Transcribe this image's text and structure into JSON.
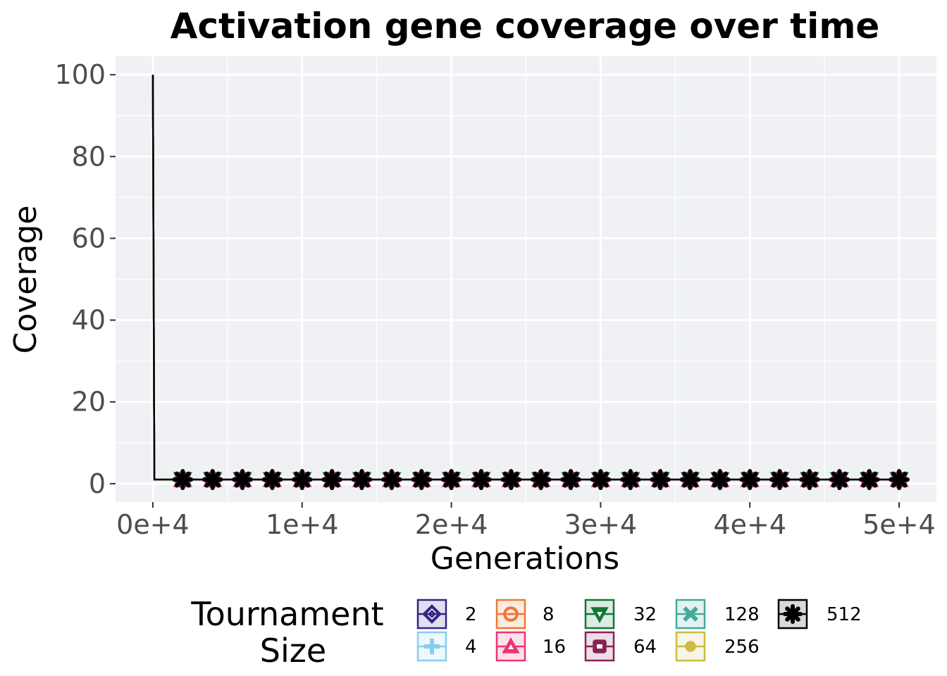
{
  "chart_data": {
    "type": "line",
    "title": "Activation gene coverage over time",
    "xlabel": "Generations",
    "ylabel": "Coverage",
    "xlim": [
      -2500,
      52500
    ],
    "ylim": [
      -4.5,
      104.5
    ],
    "x_ticks": [
      0,
      10000,
      20000,
      30000,
      40000,
      50000
    ],
    "x_tick_labels": [
      "0e+4",
      "1e+4",
      "2e+4",
      "3e+4",
      "4e+4",
      "5e+4"
    ],
    "y_ticks": [
      0,
      20,
      40,
      60,
      80,
      100
    ],
    "y_tick_labels": [
      "0",
      "20",
      "40",
      "60",
      "80",
      "100"
    ],
    "grid": true,
    "legend": {
      "title_lines": [
        "Tournament",
        "Size"
      ],
      "position": "bottom"
    },
    "x": [
      0,
      100,
      2000,
      4000,
      6000,
      8000,
      10000,
      12000,
      14000,
      16000,
      18000,
      20000,
      22000,
      24000,
      26000,
      28000,
      30000,
      32000,
      34000,
      36000,
      38000,
      40000,
      42000,
      44000,
      46000,
      48000,
      50000
    ],
    "series": [
      {
        "name": "2",
        "color": "#332288",
        "shape": "diamond",
        "values": [
          100,
          1,
          1,
          1,
          1,
          1,
          1,
          1,
          1,
          1,
          1,
          1,
          1,
          1,
          1,
          1,
          1,
          1,
          1,
          1,
          1,
          1,
          1,
          1,
          1,
          1,
          1
        ]
      },
      {
        "name": "4",
        "color": "#88CCEE",
        "shape": "plus",
        "values": [
          100,
          1,
          1,
          1,
          1,
          1,
          1,
          1,
          1,
          1,
          1,
          1,
          1,
          1,
          1,
          1,
          1,
          1,
          1,
          1,
          1,
          1,
          1,
          1,
          1,
          1,
          1
        ]
      },
      {
        "name": "8",
        "color": "#EE7733",
        "shape": "circle-minus",
        "values": [
          100,
          1,
          1,
          1,
          1,
          1,
          1,
          1,
          1,
          1,
          1,
          1,
          1,
          1,
          1,
          1,
          1,
          1,
          1,
          1,
          1,
          1,
          1,
          1,
          1,
          1,
          1
        ]
      },
      {
        "name": "16",
        "color": "#EE3377",
        "shape": "triangle",
        "values": [
          100,
          1,
          1,
          1,
          1,
          1,
          1,
          1,
          1,
          1,
          1,
          1,
          1,
          1,
          1,
          1,
          1,
          1,
          1,
          1,
          1,
          1,
          1,
          1,
          1,
          1,
          1
        ]
      },
      {
        "name": "32",
        "color": "#117733",
        "shape": "triangle-down",
        "values": [
          100,
          1,
          1,
          1,
          1,
          1,
          1,
          1,
          1,
          1,
          1,
          1,
          1,
          1,
          1,
          1,
          1,
          1,
          1,
          1,
          1,
          1,
          1,
          1,
          1,
          1,
          1
        ]
      },
      {
        "name": "64",
        "color": "#882255",
        "shape": "square",
        "values": [
          100,
          1,
          1,
          1,
          1,
          1,
          1,
          1,
          1,
          1,
          1,
          1,
          1,
          1,
          1,
          1,
          1,
          1,
          1,
          1,
          1,
          1,
          1,
          1,
          1,
          1,
          1
        ]
      },
      {
        "name": "128",
        "color": "#44AA99",
        "shape": "cross",
        "values": [
          100,
          1,
          1,
          1,
          1,
          1,
          1,
          1,
          1,
          1,
          1,
          1,
          1,
          1,
          1,
          1,
          1,
          1,
          1,
          1,
          1,
          1,
          1,
          1,
          1,
          1,
          1
        ]
      },
      {
        "name": "256",
        "color": "#CCBB44",
        "shape": "dot",
        "values": [
          100,
          1,
          1,
          1,
          1,
          1,
          1,
          1,
          1,
          1,
          1,
          1,
          1,
          1,
          1,
          1,
          1,
          1,
          1,
          1,
          1,
          1,
          1,
          1,
          1,
          1,
          1
        ]
      },
      {
        "name": "512",
        "color": "#000000",
        "shape": "asterisk",
        "values": [
          100,
          1,
          1,
          1,
          1,
          1,
          1,
          1,
          1,
          1,
          1,
          1,
          1,
          1,
          1,
          1,
          1,
          1,
          1,
          1,
          1,
          1,
          1,
          1,
          1,
          1,
          1
        ]
      }
    ]
  }
}
